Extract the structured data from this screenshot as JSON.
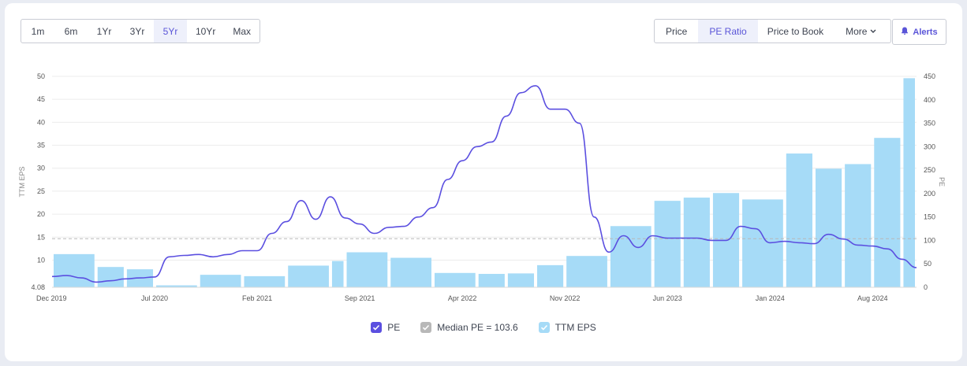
{
  "periods": [
    "1m",
    "6m",
    "1Yr",
    "3Yr",
    "5Yr",
    "10Yr",
    "Max"
  ],
  "active_period": "5Yr",
  "metrics": [
    "Price",
    "PE Ratio",
    "Price to Book",
    "More"
  ],
  "active_metric": "PE Ratio",
  "alerts_label": "Alerts",
  "legend": {
    "pe": "PE",
    "median": "Median PE = 103.6",
    "eps": "TTM EPS"
  },
  "colors": {
    "pe_line": "#5b4fe0",
    "eps_bar": "#a6dbf7",
    "median_line": "#b8b8b8",
    "accent": "#5a55d8"
  },
  "chart_data": {
    "type": "bar+line",
    "x_tick_labels": [
      "Dec 2019",
      "Jul 2020",
      "Feb 2021",
      "Sep 2021",
      "Apr 2022",
      "Nov 2022",
      "Jun 2023",
      "Jan 2024",
      "Aug 2024"
    ],
    "x_range": [
      "2019-12",
      "2024-11"
    ],
    "left_axis": {
      "label": "TTM EPS",
      "ticks": [
        4.08,
        10,
        15,
        20,
        25,
        30,
        35,
        40,
        45,
        50
      ],
      "range": [
        4.08,
        50
      ]
    },
    "right_axis": {
      "label": "PE",
      "ticks": [
        0,
        50,
        100,
        150,
        200,
        250,
        300,
        350,
        400,
        450
      ],
      "range": [
        0,
        450
      ]
    },
    "median_pe": 103.6,
    "eps_bars": [
      {
        "start": "2019-12",
        "end": "2020-03",
        "value": 11.3
      },
      {
        "start": "2020-03",
        "end": "2020-05",
        "value": 8.5
      },
      {
        "start": "2020-05",
        "end": "2020-07",
        "value": 8.0
      },
      {
        "start": "2020-07",
        "end": "2020-10",
        "value": 4.5
      },
      {
        "start": "2020-10",
        "end": "2021-01",
        "value": 6.8
      },
      {
        "start": "2021-01",
        "end": "2021-04",
        "value": 6.5
      },
      {
        "start": "2021-04",
        "end": "2021-07",
        "value": 8.8
      },
      {
        "start": "2021-07",
        "end": "2021-08",
        "value": 9.8
      },
      {
        "start": "2021-08",
        "end": "2021-11",
        "value": 11.7
      },
      {
        "start": "2021-11",
        "end": "2022-02",
        "value": 10.5
      },
      {
        "start": "2022-02",
        "end": "2022-05",
        "value": 7.2
      },
      {
        "start": "2022-05",
        "end": "2022-07",
        "value": 7.0
      },
      {
        "start": "2022-07",
        "end": "2022-09",
        "value": 7.1
      },
      {
        "start": "2022-09",
        "end": "2022-11",
        "value": 8.9
      },
      {
        "start": "2022-11",
        "end": "2023-02",
        "value": 10.9
      },
      {
        "start": "2023-02",
        "end": "2023-05",
        "value": 17.4
      },
      {
        "start": "2023-05",
        "end": "2023-07",
        "value": 22.9
      },
      {
        "start": "2023-07",
        "end": "2023-09",
        "value": 23.6
      },
      {
        "start": "2023-09",
        "end": "2023-11",
        "value": 24.6
      },
      {
        "start": "2023-11",
        "end": "2024-02",
        "value": 23.2
      },
      {
        "start": "2024-02",
        "end": "2024-04",
        "value": 33.2
      },
      {
        "start": "2024-04",
        "end": "2024-06",
        "value": 29.9
      },
      {
        "start": "2024-06",
        "end": "2024-08",
        "value": 30.9
      },
      {
        "start": "2024-08",
        "end": "2024-10",
        "value": 36.6
      },
      {
        "start": "2024-10",
        "end": "2024-11",
        "value": 49.6
      }
    ],
    "pe_series": [
      [
        "2019-12",
        23
      ],
      [
        "2020-01",
        25
      ],
      [
        "2020-02",
        20
      ],
      [
        "2020-03",
        11
      ],
      [
        "2020-04",
        14
      ],
      [
        "2020-05",
        18
      ],
      [
        "2020-06",
        20
      ],
      [
        "2020-07",
        22
      ],
      [
        "2020-08",
        65
      ],
      [
        "2020-09",
        68
      ],
      [
        "2020-10",
        70
      ],
      [
        "2020-11",
        65
      ],
      [
        "2020-12",
        70
      ],
      [
        "2021-01",
        78
      ],
      [
        "2021-02",
        78
      ],
      [
        "2021-03",
        115
      ],
      [
        "2021-04",
        140
      ],
      [
        "2021-05",
        185
      ],
      [
        "2021-06",
        145
      ],
      [
        "2021-07",
        193
      ],
      [
        "2021-08",
        148
      ],
      [
        "2021-09",
        135
      ],
      [
        "2021-10",
        115
      ],
      [
        "2021-11",
        128
      ],
      [
        "2021-12",
        130
      ],
      [
        "2022-01",
        150
      ],
      [
        "2022-02",
        170
      ],
      [
        "2022-03",
        230
      ],
      [
        "2022-04",
        270
      ],
      [
        "2022-05",
        300
      ],
      [
        "2022-06",
        310
      ],
      [
        "2022-07",
        365
      ],
      [
        "2022-08",
        415
      ],
      [
        "2022-09",
        430
      ],
      [
        "2022-10",
        380
      ],
      [
        "2022-11",
        380
      ],
      [
        "2022-12",
        350
      ],
      [
        "2023-01",
        150
      ],
      [
        "2023-02",
        75
      ],
      [
        "2023-03",
        110
      ],
      [
        "2023-04",
        85
      ],
      [
        "2023-05",
        110
      ],
      [
        "2023-06",
        105
      ],
      [
        "2023-07",
        105
      ],
      [
        "2023-08",
        105
      ],
      [
        "2023-09",
        100
      ],
      [
        "2023-10",
        100
      ],
      [
        "2023-11",
        130
      ],
      [
        "2023-12",
        125
      ],
      [
        "2024-01",
        95
      ],
      [
        "2024-02",
        98
      ],
      [
        "2024-03",
        95
      ],
      [
        "2024-04",
        93
      ],
      [
        "2024-05",
        113
      ],
      [
        "2024-06",
        103
      ],
      [
        "2024-07",
        90
      ],
      [
        "2024-08",
        88
      ],
      [
        "2024-09",
        82
      ],
      [
        "2024-10",
        60
      ],
      [
        "2024-11",
        42
      ]
    ]
  }
}
